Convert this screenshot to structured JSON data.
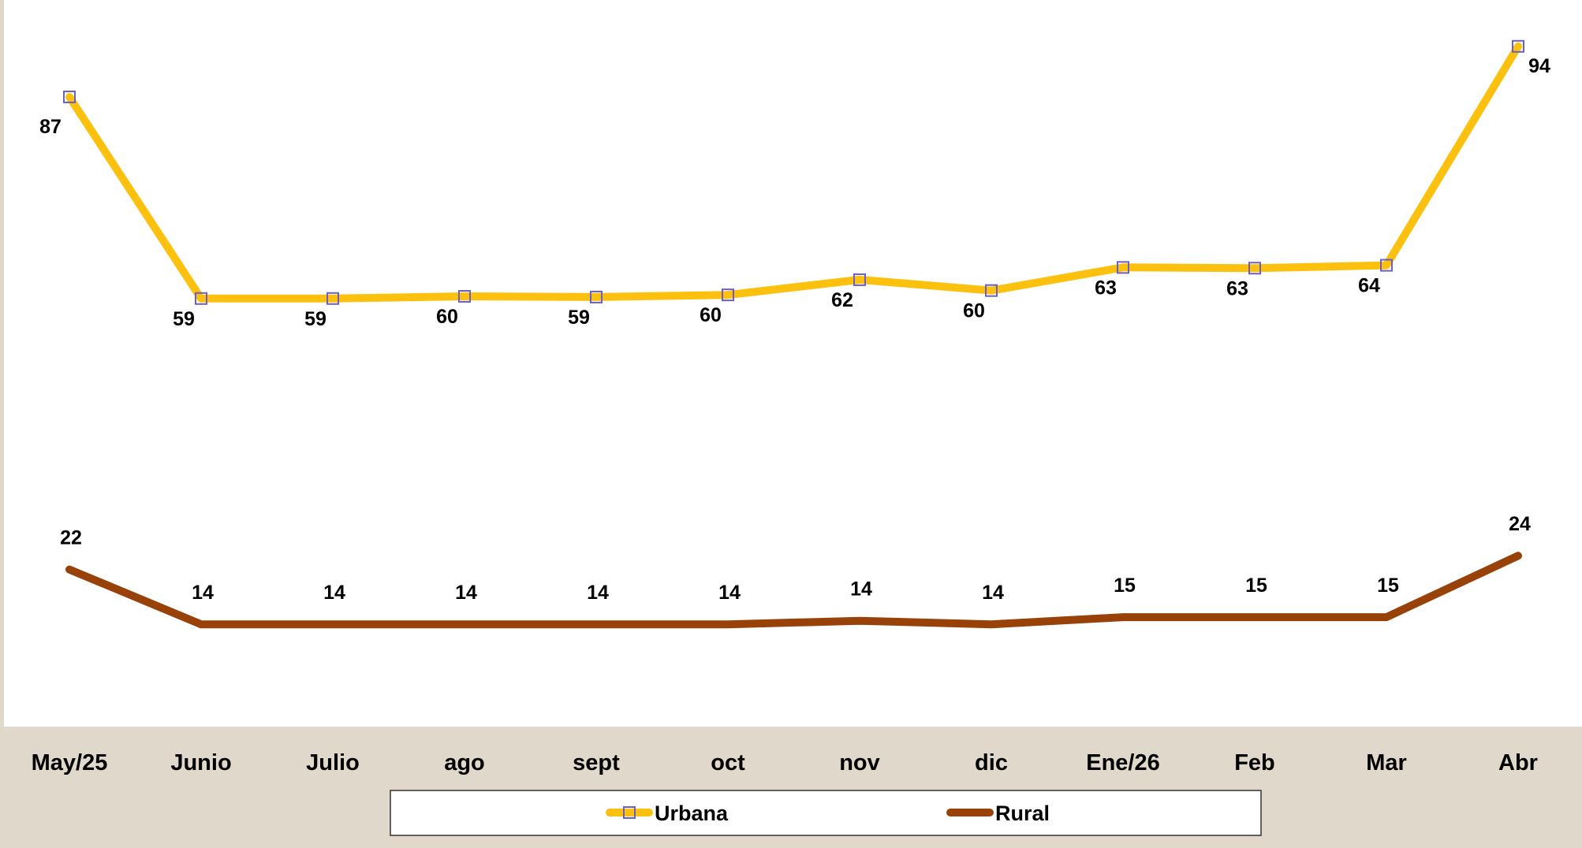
{
  "chart_data": {
    "type": "line",
    "categories": [
      "May/25",
      "Junio",
      "Julio",
      "ago",
      "sept",
      "oct",
      "nov",
      "dic",
      "Ene/26",
      "Feb",
      "Mar",
      "Abr"
    ],
    "series": [
      {
        "name": "Urbana",
        "color": "#fbc10e",
        "marker": "square",
        "marker_color": "#6b5fc7",
        "values": [
          87,
          59,
          59,
          60,
          59,
          60,
          62,
          60,
          63,
          63,
          64,
          94
        ],
        "value_shown": [
          87,
          59.1,
          59.1,
          59.4,
          59.3,
          59.6,
          61.7,
          60.2,
          63.4,
          63.3,
          63.7,
          94
        ]
      },
      {
        "name": "Rural",
        "color": "#98420a",
        "values": [
          22,
          14,
          14,
          14,
          14,
          14,
          14,
          14,
          15,
          15,
          15,
          24
        ],
        "value_shown": [
          21.6,
          14,
          14,
          14,
          14,
          14,
          14.5,
          14,
          15,
          15,
          15,
          23.5
        ]
      }
    ],
    "title": "",
    "xlabel": "",
    "ylabel": "",
    "ylim": [
      0,
      100
    ],
    "grid": false,
    "legend_position": "bottom",
    "plot_background": "#ffffff",
    "page_background": "#e0d8cb"
  }
}
